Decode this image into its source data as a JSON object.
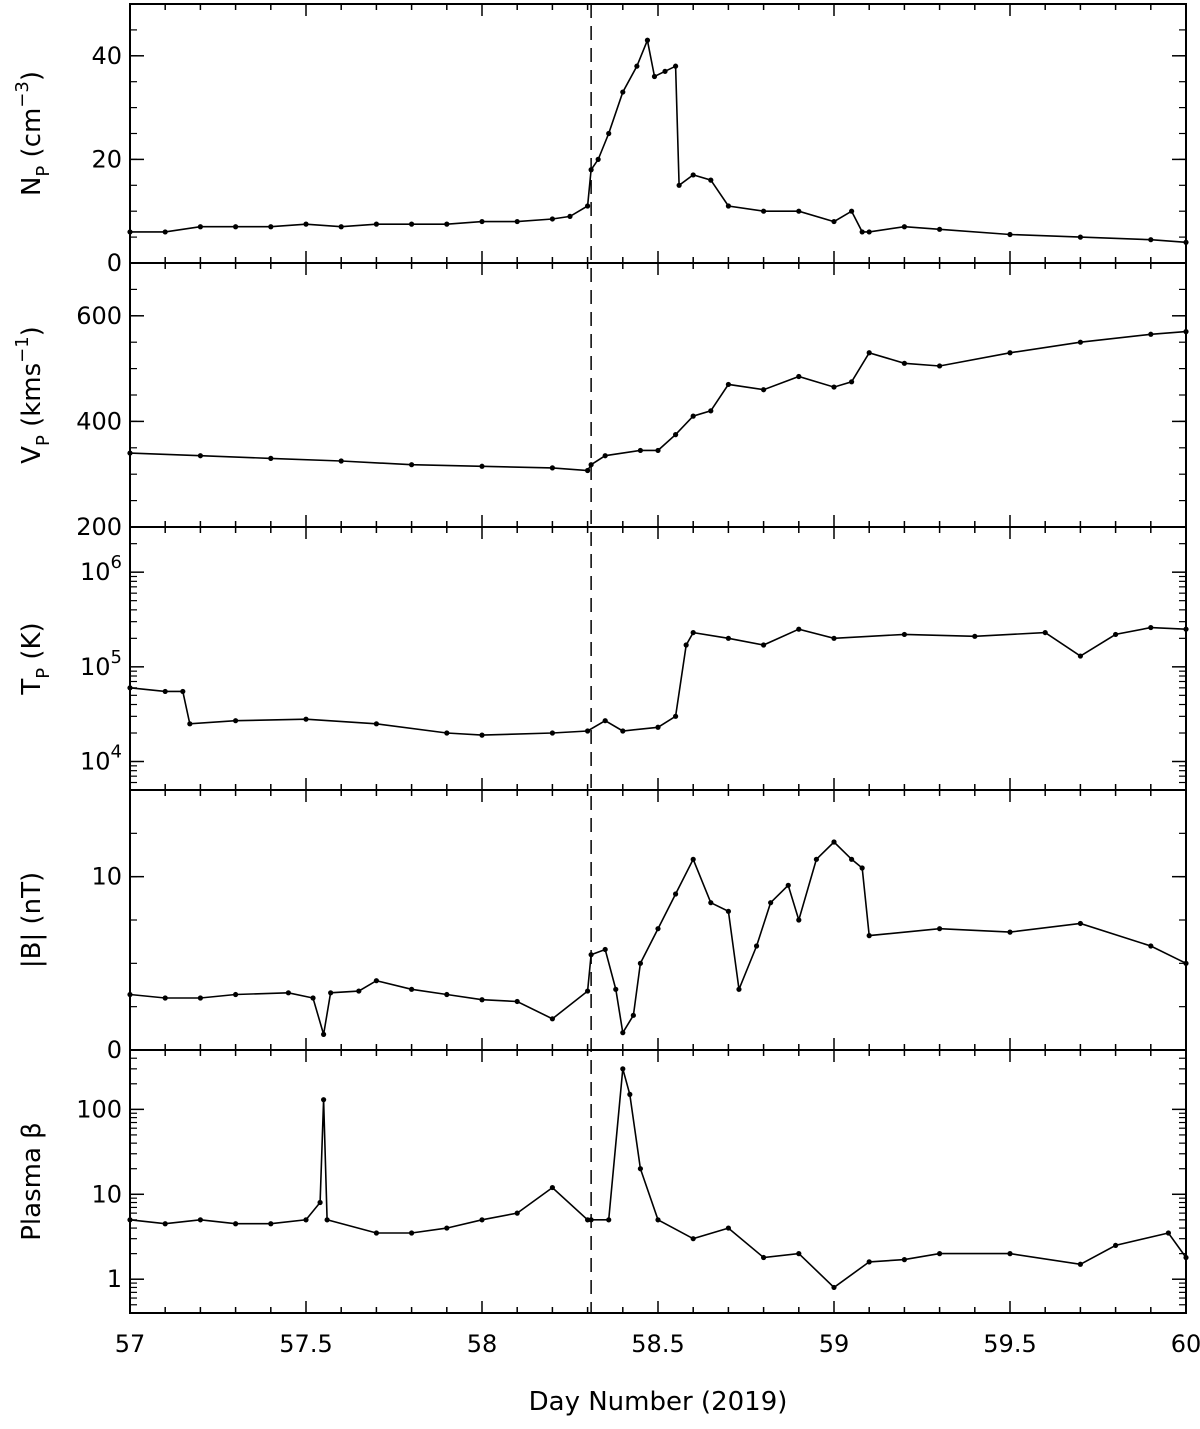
{
  "figure": {
    "xlabel": "Day Number (2019)",
    "event_marker_day": 58.31,
    "line_color": "#000000"
  },
  "chart_data": [
    {
      "id": "np",
      "type": "line",
      "ylabel": "N_P (cm^-3)",
      "ylabel_parts": {
        "base": "N",
        "sub": "P",
        "pre": " (cm",
        "sup": "−3",
        "post": ")"
      },
      "xlim": [
        57,
        60
      ],
      "ylim": [
        0,
        50
      ],
      "yscale": "linear",
      "yticks": [
        0,
        20,
        40
      ],
      "ytick_labels": [
        "0",
        "20",
        "40"
      ],
      "x": [
        57.0,
        57.1,
        57.2,
        57.3,
        57.4,
        57.5,
        57.6,
        57.7,
        57.8,
        57.9,
        58.0,
        58.1,
        58.2,
        58.25,
        58.3,
        58.31,
        58.33,
        58.36,
        58.4,
        58.44,
        58.47,
        58.49,
        58.52,
        58.55,
        58.56,
        58.6,
        58.65,
        58.7,
        58.8,
        58.9,
        59.0,
        59.05,
        59.08,
        59.1,
        59.2,
        59.3,
        59.5,
        59.7,
        59.9,
        60.0
      ],
      "y": [
        6,
        6,
        7,
        7,
        7,
        7.5,
        7,
        7.5,
        7.5,
        7.5,
        8,
        8,
        8.5,
        9,
        11,
        18,
        20,
        25,
        33,
        38,
        43,
        36,
        37,
        38,
        15,
        17,
        16,
        11,
        10,
        10,
        8,
        10,
        6,
        6,
        7,
        6.5,
        5.5,
        5,
        4.5,
        4
      ]
    },
    {
      "id": "vp",
      "type": "line",
      "ylabel": "V_P (kms^-1)",
      "ylabel_parts": {
        "base": "V",
        "sub": "P",
        "pre": " (kms",
        "sup": "−1",
        "post": ")"
      },
      "xlim": [
        57,
        60
      ],
      "ylim": [
        200,
        700
      ],
      "yscale": "linear",
      "yticks": [
        200,
        400,
        600
      ],
      "ytick_labels": [
        "200",
        "400",
        "600"
      ],
      "x": [
        57.0,
        57.2,
        57.4,
        57.6,
        57.8,
        58.0,
        58.2,
        58.3,
        58.31,
        58.35,
        58.45,
        58.5,
        58.55,
        58.6,
        58.65,
        58.7,
        58.8,
        58.9,
        59.0,
        59.05,
        59.1,
        59.2,
        59.3,
        59.5,
        59.7,
        59.9,
        60.0
      ],
      "y": [
        340,
        335,
        330,
        325,
        318,
        315,
        312,
        307,
        318,
        335,
        345,
        345,
        375,
        410,
        420,
        470,
        460,
        485,
        465,
        475,
        530,
        510,
        505,
        530,
        550,
        565,
        570
      ]
    },
    {
      "id": "tp",
      "type": "line",
      "ylabel": "T_P (K)",
      "ylabel_parts": {
        "base": "T",
        "sub": "P",
        "pre": " (K)",
        "sup": "",
        "post": ""
      },
      "xlim": [
        57,
        60
      ],
      "ylim": [
        5000,
        3000000
      ],
      "yscale": "log",
      "yticks": [
        10000,
        100000,
        1000000
      ],
      "ytick_labels": [
        {
          "base": "10",
          "sup": "4"
        },
        {
          "base": "10",
          "sup": "5"
        },
        {
          "base": "10",
          "sup": "6"
        }
      ],
      "x": [
        57.0,
        57.1,
        57.15,
        57.17,
        57.3,
        57.5,
        57.7,
        57.9,
        58.0,
        58.2,
        58.3,
        58.35,
        58.4,
        58.5,
        58.55,
        58.58,
        58.6,
        58.7,
        58.8,
        58.9,
        59.0,
        59.2,
        59.4,
        59.6,
        59.7,
        59.8,
        59.9,
        60.0
      ],
      "y": [
        60000,
        55000,
        55000,
        25000,
        27000,
        28000,
        25000,
        20000,
        19000,
        20000,
        21000,
        27000,
        21000,
        23000,
        30000,
        170000,
        230000,
        200000,
        170000,
        250000,
        200000,
        220000,
        210000,
        230000,
        130000,
        220000,
        260000,
        250000
      ]
    },
    {
      "id": "b",
      "type": "line",
      "ylabel": "|B| (nT)",
      "ylabel_parts": {
        "base": "|B| (nT)",
        "sub": "",
        "pre": "",
        "sup": "",
        "post": ""
      },
      "xlim": [
        57,
        60
      ],
      "ylim": [
        0,
        15
      ],
      "yscale": "linear",
      "yticks": [
        0,
        10
      ],
      "ytick_labels": [
        "0",
        "10"
      ],
      "x": [
        57.0,
        57.1,
        57.2,
        57.3,
        57.45,
        57.52,
        57.55,
        57.57,
        57.65,
        57.7,
        57.8,
        57.9,
        58.0,
        58.1,
        58.2,
        58.3,
        58.31,
        58.35,
        58.38,
        58.4,
        58.43,
        58.45,
        58.5,
        58.55,
        58.6,
        58.65,
        58.7,
        58.73,
        58.78,
        58.82,
        58.87,
        58.9,
        58.95,
        59.0,
        59.05,
        59.08,
        59.1,
        59.3,
        59.5,
        59.7,
        59.9,
        60.0
      ],
      "y": [
        3.2,
        3.0,
        3.0,
        3.2,
        3.3,
        3.0,
        0.9,
        3.3,
        3.4,
        4.0,
        3.5,
        3.2,
        2.9,
        2.8,
        1.8,
        3.4,
        5.5,
        5.8,
        3.5,
        1.0,
        2.0,
        5.0,
        7.0,
        9.0,
        11.0,
        8.5,
        8.0,
        3.5,
        6.0,
        8.5,
        9.5,
        7.5,
        11.0,
        12.0,
        11.0,
        10.5,
        6.6,
        7.0,
        6.8,
        7.3,
        6.0,
        5.0
      ]
    },
    {
      "id": "beta",
      "type": "line",
      "ylabel": "Plasma β",
      "ylabel_parts": {
        "base": "Plasma β",
        "sub": "",
        "pre": "",
        "sup": "",
        "post": ""
      },
      "xlim": [
        57,
        60
      ],
      "ylim": [
        0.4,
        500
      ],
      "yscale": "log",
      "yticks": [
        1,
        10,
        100
      ],
      "ytick_labels": [
        "1",
        "10",
        "100"
      ],
      "x": [
        57.0,
        57.1,
        57.2,
        57.3,
        57.4,
        57.5,
        57.54,
        57.55,
        57.56,
        57.7,
        57.8,
        57.9,
        58.0,
        58.1,
        58.2,
        58.3,
        58.31,
        58.36,
        58.4,
        58.42,
        58.45,
        58.5,
        58.6,
        58.7,
        58.8,
        58.9,
        59.0,
        59.1,
        59.2,
        59.3,
        59.5,
        59.7,
        59.8,
        59.95,
        60.0
      ],
      "y": [
        5,
        4.5,
        5,
        4.5,
        4.5,
        5,
        8,
        130,
        5,
        3.5,
        3.5,
        4,
        5,
        6,
        12,
        5,
        5,
        5,
        300,
        150,
        20,
        5,
        3,
        4,
        1.8,
        2,
        0.8,
        1.6,
        1.7,
        2,
        2,
        1.5,
        2.5,
        3.5,
        1.8
      ]
    }
  ],
  "x_axis": {
    "ticks": [
      57,
      57.5,
      58,
      58.5,
      59,
      59.5,
      60
    ],
    "tick_labels": [
      "57",
      "57.5",
      "58",
      "58.5",
      "59",
      "59.5",
      "60"
    ]
  }
}
